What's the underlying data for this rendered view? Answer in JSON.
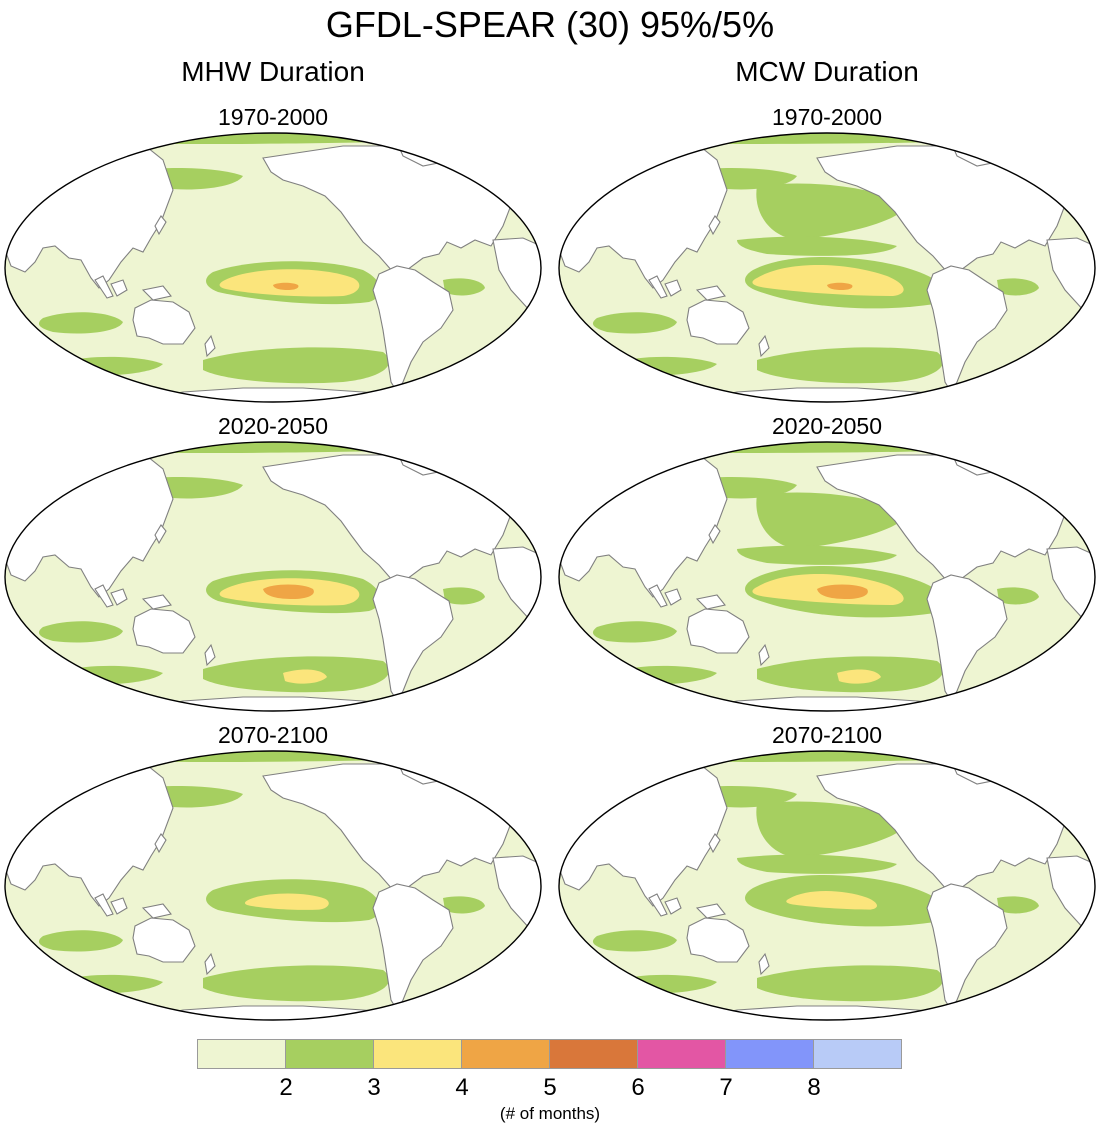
{
  "figure": {
    "title": "GFDL-SPEAR (30) 95%/5%",
    "columns": [
      "MHW Duration",
      "MCW Duration"
    ],
    "panels": [
      {
        "period": "1970-2000",
        "variable": "MHW Duration"
      },
      {
        "period": "1970-2000",
        "variable": "MCW Duration"
      },
      {
        "period": "2020-2050",
        "variable": "MHW Duration"
      },
      {
        "period": "2020-2050",
        "variable": "MCW Duration"
      },
      {
        "period": "2070-2100",
        "variable": "MHW Duration"
      },
      {
        "period": "2070-2100",
        "variable": "MCW Duration"
      }
    ]
  },
  "colorbar": {
    "colors": [
      "#eef5d2",
      "#a6cf60",
      "#fbe57c",
      "#efa545",
      "#d9773a",
      "#e356a4",
      "#8295fa",
      "#b8cbf7"
    ],
    "ticks": [
      "2",
      "3",
      "4",
      "5",
      "6",
      "7",
      "8"
    ],
    "units": "(# of months)"
  },
  "palette": {
    "ocean": "#eef5d2",
    "green": "#a6cf60",
    "yellow": "#fbe57c",
    "orange": "#efa545",
    "land_outline": "#808080"
  }
}
